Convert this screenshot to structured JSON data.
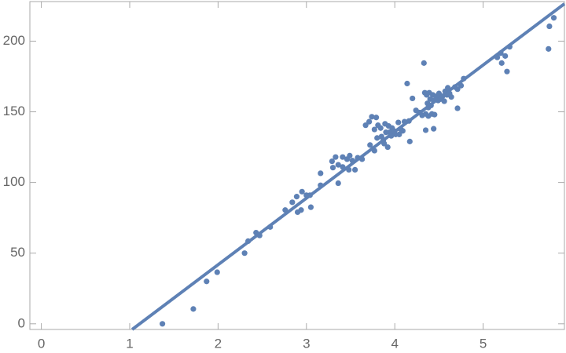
{
  "chart_data": {
    "type": "scatter",
    "color": "#5e81b5",
    "frame": true,
    "x": [
      1.37,
      1.72,
      1.87,
      1.99,
      2.3,
      2.34,
      2.43,
      2.47,
      2.59,
      2.76,
      2.84,
      2.89,
      2.9,
      2.94,
      2.95,
      3.0,
      3.04,
      3.05,
      3.16,
      3.16,
      3.29,
      3.3,
      3.33,
      3.36,
      3.36,
      3.41,
      3.41,
      3.46,
      3.48,
      3.49,
      3.52,
      3.55,
      3.58,
      3.63,
      3.67,
      3.71,
      3.72,
      3.74,
      3.77,
      3.77,
      3.79,
      3.8,
      3.81,
      3.84,
      3.85,
      3.87,
      3.88,
      3.89,
      3.9,
      3.92,
      3.93,
      3.94,
      3.96,
      3.97,
      3.99,
      4.01,
      4.04,
      4.05,
      4.07,
      4.09,
      4.11,
      4.14,
      4.16,
      4.17,
      4.2,
      4.24,
      4.28,
      4.31,
      4.33,
      4.34,
      4.35,
      4.35,
      4.36,
      4.37,
      4.38,
      4.38,
      4.39,
      4.4,
      4.41,
      4.42,
      4.43,
      4.44,
      4.44,
      4.45,
      4.47,
      4.49,
      4.5,
      4.52,
      4.54,
      4.56,
      4.57,
      4.59,
      4.6,
      4.62,
      4.64,
      4.68,
      4.71,
      4.71,
      4.75,
      4.78,
      5.16,
      5.2,
      5.21,
      5.25,
      5.27,
      5.3,
      5.74,
      5.75,
      5.8
    ],
    "values": [
      0,
      10.5,
      30,
      36.5,
      50,
      58.5,
      64.5,
      62.5,
      68.5,
      80.5,
      86,
      90,
      79,
      80.5,
      93.5,
      91,
      91,
      82.5,
      106.5,
      98,
      115,
      110.5,
      118,
      112.5,
      99.5,
      118,
      111,
      116.5,
      109,
      119,
      115.5,
      109,
      117.5,
      116.5,
      140.5,
      143,
      126.5,
      146.5,
      137.5,
      122.5,
      146,
      131.5,
      140.5,
      138.5,
      132.5,
      130,
      127.5,
      141.5,
      135.5,
      125,
      140,
      135.5,
      133,
      138.5,
      136.5,
      134,
      142.5,
      134,
      137.5,
      136.5,
      143,
      170,
      143.5,
      129,
      159.5,
      151,
      149.5,
      147.5,
      184.5,
      163.5,
      137,
      148.5,
      162,
      156,
      153,
      147,
      163.5,
      159,
      154.5,
      148.5,
      162,
      138,
      158,
      148,
      161,
      158,
      163,
      159,
      161,
      157.5,
      164.5,
      162,
      167,
      163,
      160.5,
      167.5,
      166,
      152.5,
      168.5,
      173.5,
      188.5,
      191.5,
      184.5,
      189.5,
      178.5,
      196,
      194.5,
      210.5,
      216.5
    ],
    "fit": {
      "slope": 47.1,
      "intercept": -52.4
    },
    "xlim": [
      -0.13,
      5.92
    ],
    "ylim": [
      -4,
      228
    ],
    "xticks": [
      0,
      1,
      2,
      3,
      4,
      5
    ],
    "yticks": [
      0,
      50,
      100,
      150,
      200
    ]
  }
}
